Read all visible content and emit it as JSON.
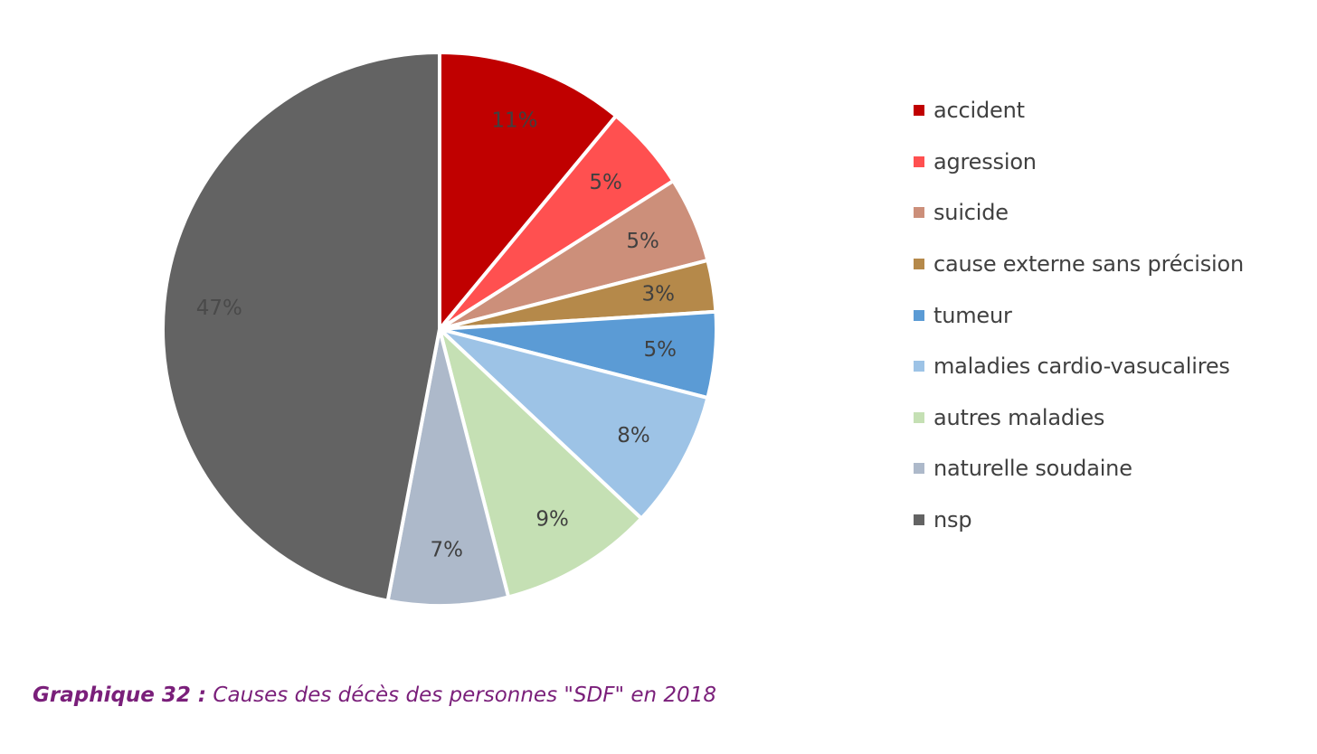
{
  "chart_data": {
    "type": "pie",
    "title": "",
    "caption_prefix": "Graphique 32 :",
    "caption_text": " Causes des décès des personnes \"SDF\" en 2018",
    "legend_position": "right",
    "slices": [
      {
        "label": "accident",
        "value": 11,
        "display": "11%",
        "color": "#c00000",
        "label_color": "#404040"
      },
      {
        "label": "agression",
        "value": 5,
        "display": "5%",
        "color": "#ff5050",
        "label_color": "#404040"
      },
      {
        "label": "suicide",
        "value": 5,
        "display": "5%",
        "color": "#cc8f7a",
        "label_color": "#404040"
      },
      {
        "label": "cause externe sans précision",
        "value": 3,
        "display": "3%",
        "color": "#b5894a",
        "label_color": "#404040"
      },
      {
        "label": "tumeur",
        "value": 5,
        "display": "5%",
        "color": "#5b9bd5",
        "label_color": "#404040"
      },
      {
        "label": "maladies cardio-vasucalires",
        "value": 8,
        "display": "8%",
        "color": "#9dc3e6",
        "label_color": "#404040"
      },
      {
        "label": "autres maladies",
        "value": 9,
        "display": "9%",
        "color": "#c5e0b4",
        "label_color": "#404040"
      },
      {
        "label": "naturelle soudaine",
        "value": 7,
        "display": "7%",
        "color": "#adb9ca",
        "label_color": "#404040"
      },
      {
        "label": "nsp",
        "value": 47,
        "display": "47%",
        "color": "#636363",
        "label_color": "#4a4a4a"
      }
    ]
  }
}
